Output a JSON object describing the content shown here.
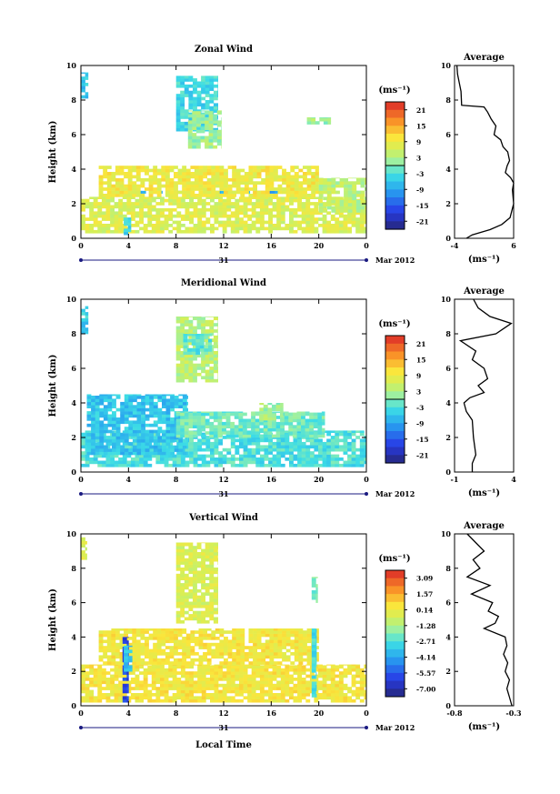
{
  "figure": {
    "xlabel": "Local Time",
    "date_day": "31",
    "date_label": "Mar 2012",
    "unit_label": "(ms⁻¹)",
    "avg_unit_label": "(ms⁻¹)"
  },
  "chart_data": [
    {
      "type": "heatmap",
      "title": "Zonal Wind",
      "ylabel": "Height (km)",
      "x_ticks": [
        "0",
        "4",
        "8",
        "12",
        "16",
        "20",
        "0"
      ],
      "xlim": [
        0,
        24
      ],
      "y_ticks": [
        "0",
        "2",
        "4",
        "6",
        "8",
        "10"
      ],
      "ylim": [
        0,
        10
      ],
      "colorbar": {
        "unit": "(ms⁻¹)",
        "ticks": [
          "21",
          "15",
          "9",
          "3",
          "-3",
          "-9",
          "-15",
          "-21"
        ],
        "range": [
          -24,
          24
        ],
        "contour_at": 0
      },
      "regions": [
        {
          "x": [
            0,
            0.6
          ],
          "h": [
            8.1,
            9.6
          ],
          "v": -6
        },
        {
          "x": [
            8.0,
            11.5
          ],
          "h": [
            6.2,
            9.4
          ],
          "v": -4
        },
        {
          "x": [
            9.0,
            11.8
          ],
          "h": [
            5.2,
            7.4
          ],
          "v": 2
        },
        {
          "x": [
            3.0,
            20.2
          ],
          "h": [
            2.6,
            2.75
          ],
          "v": -9
        },
        {
          "x": [
            0,
            24
          ],
          "h": [
            0.3,
            2.4
          ],
          "v": 7
        },
        {
          "x": [
            1.5,
            20
          ],
          "h": [
            2.4,
            4.2
          ],
          "v": 9
        },
        {
          "x": [
            3.6,
            4.2
          ],
          "h": [
            0.2,
            1.2
          ],
          "v": -5
        },
        {
          "x": [
            20,
            24
          ],
          "h": [
            1.5,
            3.5
          ],
          "v": 4
        },
        {
          "x": [
            19,
            21
          ],
          "h": [
            6.6,
            7.0
          ],
          "v": 2
        }
      ],
      "average_profile": {
        "title": "Average",
        "xlim": [
          -4,
          6
        ],
        "x_ticks": [
          "-4",
          "6"
        ],
        "y_ticks": [
          "0",
          "2",
          "4",
          "6",
          "8",
          "10"
        ],
        "unit": "(ms⁻¹)",
        "points": [
          [
            -2.0,
            0.0
          ],
          [
            -1.0,
            0.2
          ],
          [
            2.0,
            0.5
          ],
          [
            4.0,
            0.8
          ],
          [
            5.4,
            1.2
          ],
          [
            6.0,
            2.0
          ],
          [
            5.8,
            2.8
          ],
          [
            6.0,
            3.2
          ],
          [
            5.5,
            3.5
          ],
          [
            4.6,
            3.8
          ],
          [
            4.9,
            4.2
          ],
          [
            5.3,
            4.5
          ],
          [
            5.0,
            5.0
          ],
          [
            4.2,
            5.3
          ],
          [
            3.8,
            5.7
          ],
          [
            2.7,
            6.0
          ],
          [
            3.0,
            6.5
          ],
          [
            2.2,
            6.9
          ],
          [
            1.6,
            7.3
          ],
          [
            1.0,
            7.6
          ],
          [
            -2.8,
            7.7
          ],
          [
            -2.9,
            8.5
          ],
          [
            -3.2,
            9.0
          ],
          [
            -3.5,
            9.5
          ],
          [
            -3.6,
            10.0
          ]
        ]
      }
    },
    {
      "type": "heatmap",
      "title": "Meridional Wind",
      "ylabel": "Height (km)",
      "x_ticks": [
        "0",
        "4",
        "8",
        "12",
        "16",
        "20",
        "0"
      ],
      "xlim": [
        0,
        24
      ],
      "y_ticks": [
        "0",
        "2",
        "4",
        "6",
        "8",
        "10"
      ],
      "ylim": [
        0,
        10
      ],
      "colorbar": {
        "unit": "(ms⁻¹)",
        "ticks": [
          "21",
          "15",
          "9",
          "3",
          "-3",
          "-9",
          "-15",
          "-21"
        ],
        "range": [
          -24,
          24
        ],
        "contour_at": 0
      },
      "regions": [
        {
          "x": [
            0,
            0.6
          ],
          "h": [
            8.0,
            9.6
          ],
          "v": -5
        },
        {
          "x": [
            8.0,
            11.5
          ],
          "h": [
            5.2,
            9.0
          ],
          "v": 4
        },
        {
          "x": [
            8.6,
            11.0
          ],
          "h": [
            6.8,
            8.0
          ],
          "v": -2
        },
        {
          "x": [
            0,
            24
          ],
          "h": [
            0.3,
            2.4
          ],
          "v": -3
        },
        {
          "x": [
            0.5,
            9.0
          ],
          "h": [
            1.0,
            4.5
          ],
          "v": -6
        },
        {
          "x": [
            8.0,
            20.5
          ],
          "h": [
            2.0,
            3.5
          ],
          "v": -1
        },
        {
          "x": [
            15,
            17
          ],
          "h": [
            3.0,
            4.0
          ],
          "v": 2
        }
      ],
      "average_profile": {
        "title": "Average",
        "xlim": [
          -1,
          4
        ],
        "x_ticks": [
          "-1",
          "4"
        ],
        "y_ticks": [
          "0",
          "2",
          "4",
          "6",
          "8",
          "10"
        ],
        "unit": "(ms⁻¹)",
        "points": [
          [
            0.5,
            0.0
          ],
          [
            0.5,
            0.5
          ],
          [
            0.8,
            1.0
          ],
          [
            0.6,
            2.0
          ],
          [
            0.5,
            3.0
          ],
          [
            0.0,
            3.5
          ],
          [
            -0.2,
            4.0
          ],
          [
            0.3,
            4.3
          ],
          [
            1.5,
            4.6
          ],
          [
            1.0,
            5.0
          ],
          [
            1.8,
            5.4
          ],
          [
            1.5,
            6.0
          ],
          [
            0.5,
            6.5
          ],
          [
            0.8,
            7.0
          ],
          [
            -0.5,
            7.6
          ],
          [
            2.5,
            8.0
          ],
          [
            3.8,
            8.6
          ],
          [
            2.0,
            9.0
          ],
          [
            1.0,
            9.5
          ],
          [
            0.6,
            10.0
          ]
        ]
      }
    },
    {
      "type": "heatmap",
      "title": "Vertical Wind",
      "ylabel": "Height (km)",
      "x_ticks": [
        "0",
        "4",
        "8",
        "12",
        "16",
        "20",
        "0"
      ],
      "xlim": [
        0,
        24
      ],
      "y_ticks": [
        "0",
        "2",
        "4",
        "6",
        "8",
        "10"
      ],
      "ylim": [
        0,
        10
      ],
      "colorbar": {
        "unit": "(ms⁻¹)",
        "ticks": [
          "3.09",
          "1.57",
          "0.14",
          "-1.28",
          "-2.71",
          "-4.14",
          "-5.57",
          "-7.00"
        ],
        "range": [
          -7.7,
          3.8
        ],
        "contour_at": null
      },
      "regions": [
        {
          "x": [
            0,
            24
          ],
          "h": [
            0.2,
            2.4
          ],
          "v": 0.4
        },
        {
          "x": [
            1.5,
            20
          ],
          "h": [
            2.4,
            4.5
          ],
          "v": 0.4
        },
        {
          "x": [
            8.0,
            11.5
          ],
          "h": [
            4.8,
            9.5
          ],
          "v": -0.3
        },
        {
          "x": [
            3.5,
            4.0
          ],
          "h": [
            0.2,
            4.0
          ],
          "v": -6.0
        },
        {
          "x": [
            3.6,
            4.3
          ],
          "h": [
            2.0,
            3.5
          ],
          "v": -3.5
        },
        {
          "x": [
            19.4,
            19.8
          ],
          "h": [
            0.5,
            4.5
          ],
          "v": -2.8
        },
        {
          "x": [
            19.4,
            19.9
          ],
          "h": [
            6.0,
            7.5
          ],
          "v": -2.0
        },
        {
          "x": [
            0,
            0.5
          ],
          "h": [
            8.5,
            9.8
          ],
          "v": -0.3
        }
      ],
      "average_profile": {
        "title": "Average",
        "xlim": [
          -0.9,
          -0.2
        ],
        "x_ticks": [
          "-0.8",
          "-0.3"
        ],
        "y_ticks": [
          "0",
          "2",
          "4",
          "6",
          "8",
          "10"
        ],
        "unit": "(ms⁻¹)",
        "points": [
          [
            -0.22,
            0.0
          ],
          [
            -0.25,
            0.5
          ],
          [
            -0.28,
            1.0
          ],
          [
            -0.25,
            1.5
          ],
          [
            -0.3,
            2.0
          ],
          [
            -0.27,
            2.5
          ],
          [
            -0.32,
            3.0
          ],
          [
            -0.28,
            3.5
          ],
          [
            -0.3,
            4.0
          ],
          [
            -0.55,
            4.5
          ],
          [
            -0.42,
            4.8
          ],
          [
            -0.38,
            5.2
          ],
          [
            -0.5,
            5.5
          ],
          [
            -0.45,
            6.0
          ],
          [
            -0.7,
            6.5
          ],
          [
            -0.48,
            7.0
          ],
          [
            -0.75,
            7.5
          ],
          [
            -0.6,
            8.0
          ],
          [
            -0.68,
            8.5
          ],
          [
            -0.55,
            9.0
          ],
          [
            -0.65,
            9.5
          ],
          [
            -0.75,
            10.0
          ]
        ]
      }
    }
  ]
}
